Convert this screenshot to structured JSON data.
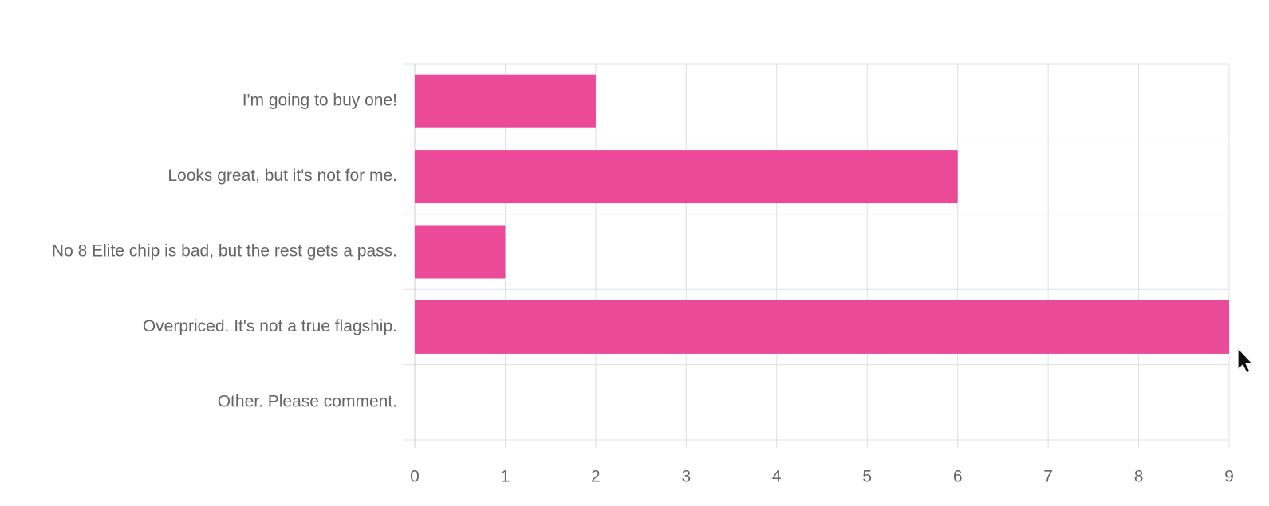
{
  "chart_data": {
    "type": "bar",
    "orientation": "horizontal",
    "categories": [
      "I'm going to buy one!",
      "Looks great, but it's not for me.",
      "No 8 Elite chip is bad, but the rest gets a pass.",
      "Overpriced. It's not a true flagship.",
      "Other. Please comment."
    ],
    "values": [
      2,
      6,
      1,
      9,
      0
    ],
    "color": "#ea4a98",
    "xlim": [
      0,
      9
    ],
    "xticks": [
      0,
      1,
      2,
      3,
      4,
      5,
      6,
      7,
      8,
      9
    ],
    "grid": true
  }
}
